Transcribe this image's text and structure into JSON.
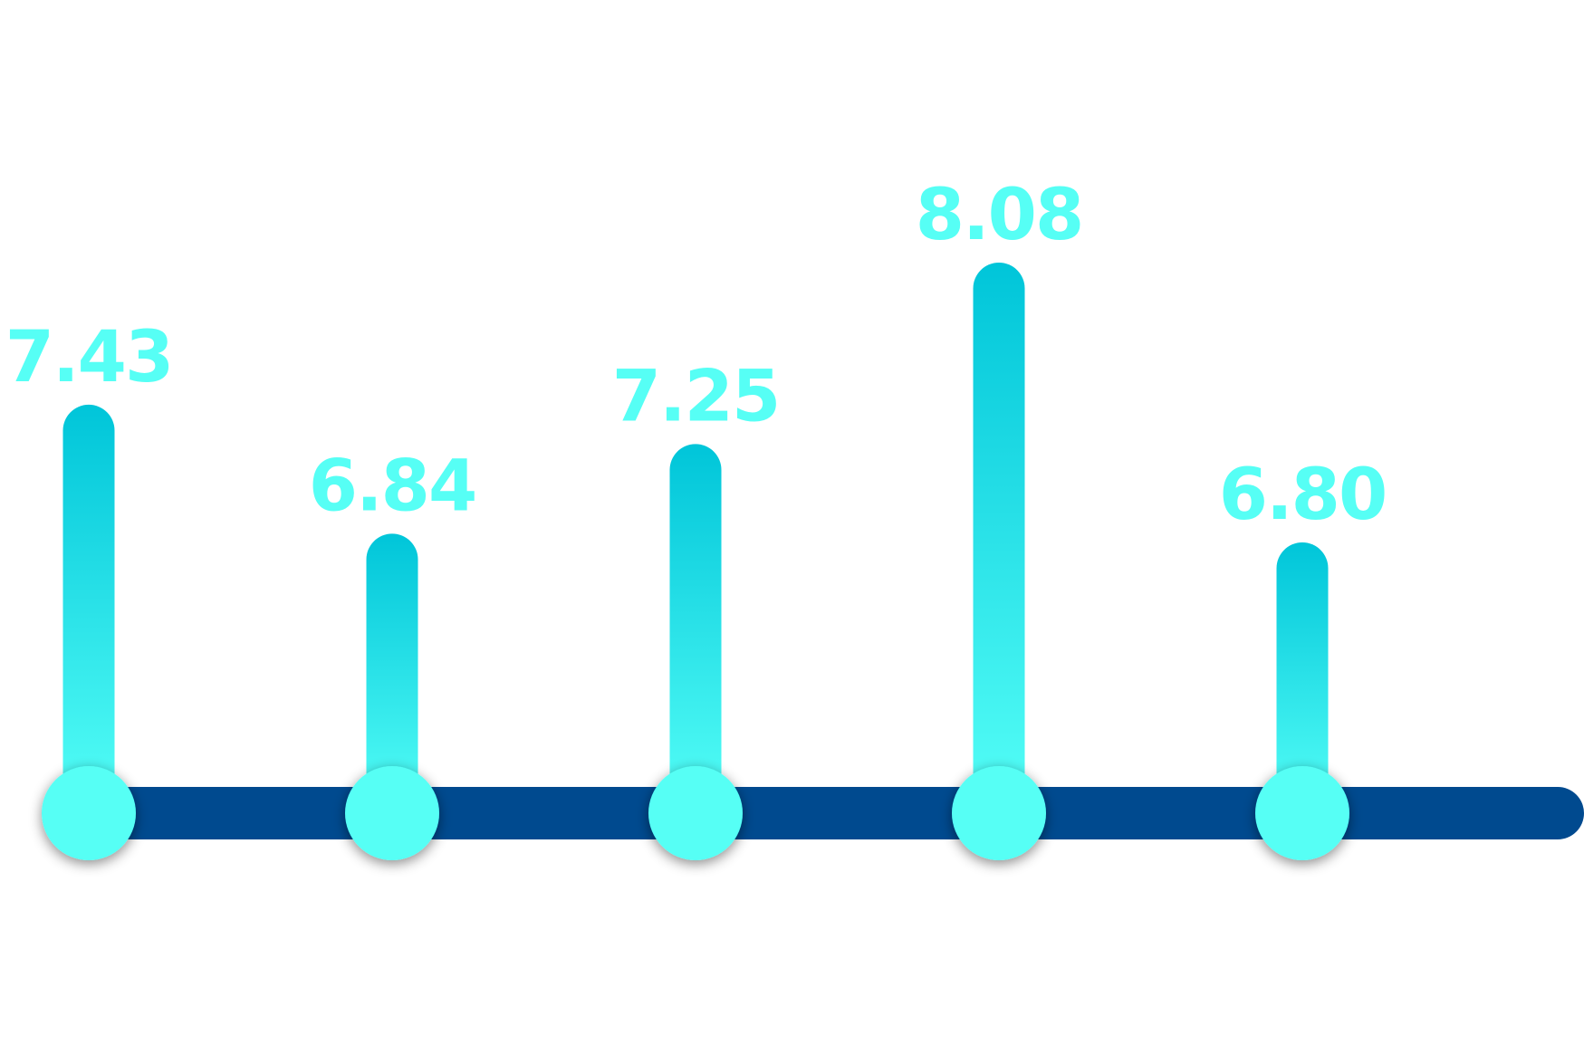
{
  "chart_data": {
    "type": "bar",
    "categories": [
      "",
      "",
      "",
      "",
      ""
    ],
    "values": [
      7.43,
      6.84,
      7.25,
      8.08,
      6.8
    ],
    "labels": [
      "7.43",
      "6.84",
      "7.25",
      "8.08",
      "6.80"
    ],
    "title": "",
    "xlabel": "",
    "ylabel": "",
    "grid": false,
    "colors": {
      "stem_top": "#00c5d9",
      "stem_bottom": "#55fff7",
      "marker": "#56fff5",
      "label": "#56fff5",
      "baseline": "#004a8f"
    }
  }
}
